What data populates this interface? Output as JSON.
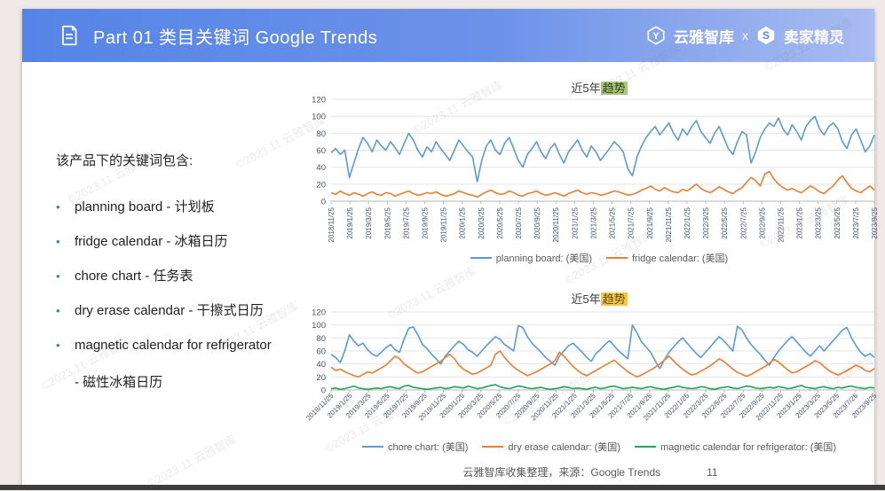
{
  "header": {
    "title": "Part 01 类目关键词 Google Trends",
    "brand_left": "云雅智库",
    "brand_sep": "x",
    "brand_right": "卖家精灵",
    "brand_left_initial": "Y",
    "brand_right_initial": "S"
  },
  "intro": {
    "heading": "该产品下的关键词包含:",
    "items": [
      {
        "text": "planning board  - 计划板"
      },
      {
        "text": "fridge calendar - 冰箱日历"
      },
      {
        "text": "chore chart - 任务表"
      },
      {
        "text": "dry erase calendar - 干擦式日历"
      },
      {
        "text": "magnetic calendar for refrigerator"
      }
    ],
    "continuation": "- 磁性冰箱日历"
  },
  "chart_data": [
    {
      "type": "line",
      "title_prefix": "近5年",
      "title_highlight": "趋势",
      "xlabel": "",
      "ylabel": "",
      "ylim": [
        0,
        120
      ],
      "y_ticks": [
        0,
        20,
        40,
        60,
        80,
        100,
        120
      ],
      "grid": true,
      "legend_position": "bottom",
      "x_label_rotation": -90,
      "x_ticks": [
        "2018/11/25",
        "2019/1/25",
        "2019/3/25",
        "2019/5/25",
        "2019/7/25",
        "2019/9/25",
        "2019/11/25",
        "2020/1/25",
        "2020/3/25",
        "2020/5/25",
        "2020/7/25",
        "2020/9/25",
        "2020/11/25",
        "2021/1/25",
        "2021/3/25",
        "2021/5/25",
        "2021/7/25",
        "2021/9/25",
        "2021/11/25",
        "2022/1/25",
        "2022/3/25",
        "2022/5/25",
        "2022/7/25",
        "2022/9/25",
        "2022/11/25",
        "2023/1/25",
        "2023/3/25",
        "2023/5/25",
        "2023/7/25",
        "2023/9/25"
      ],
      "series": [
        {
          "name": "planning board: (美国)",
          "color": "#5B9BD5",
          "values": [
            57,
            62,
            55,
            60,
            28,
            45,
            62,
            75,
            68,
            58,
            72,
            65,
            60,
            70,
            63,
            55,
            68,
            80,
            72,
            60,
            52,
            64,
            58,
            70,
            62,
            55,
            48,
            60,
            72,
            65,
            58,
            52,
            23,
            48,
            65,
            72,
            60,
            55,
            68,
            75,
            62,
            48,
            40,
            55,
            62,
            70,
            58,
            50,
            62,
            68,
            55,
            45,
            58,
            65,
            72,
            60,
            52,
            65,
            58,
            48,
            55,
            62,
            70,
            65,
            58,
            38,
            30,
            52,
            65,
            75,
            82,
            88,
            78,
            85,
            92,
            80,
            72,
            85,
            78,
            88,
            95,
            82,
            75,
            68,
            80,
            88,
            75,
            62,
            55,
            70,
            82,
            78,
            45,
            58,
            75,
            85,
            92,
            88,
            98,
            85,
            78,
            90,
            82,
            72,
            88,
            95,
            100,
            85,
            78,
            88,
            92,
            85,
            70,
            62,
            78,
            85,
            72,
            58,
            65,
            78
          ]
        },
        {
          "name": "fridge calendar: (美国)",
          "color": "#ED7D31",
          "values": [
            10,
            8,
            12,
            9,
            7,
            10,
            8,
            6,
            9,
            11,
            8,
            7,
            10,
            9,
            6,
            8,
            10,
            12,
            9,
            7,
            8,
            10,
            9,
            11,
            8,
            6,
            7,
            9,
            12,
            10,
            8,
            7,
            5,
            8,
            11,
            13,
            10,
            8,
            9,
            12,
            10,
            7,
            6,
            9,
            10,
            12,
            9,
            7,
            8,
            10,
            8,
            6,
            9,
            11,
            13,
            10,
            8,
            10,
            9,
            7,
            8,
            10,
            12,
            11,
            9,
            7,
            8,
            10,
            13,
            15,
            18,
            14,
            12,
            16,
            13,
            11,
            10,
            14,
            12,
            16,
            20,
            15,
            12,
            10,
            13,
            17,
            14,
            11,
            9,
            13,
            16,
            22,
            28,
            24,
            18,
            32,
            35,
            26,
            20,
            16,
            13,
            15,
            12,
            10,
            14,
            18,
            15,
            11,
            9,
            14,
            18,
            25,
            30,
            22,
            15,
            12,
            10,
            14,
            18,
            13
          ]
        }
      ]
    },
    {
      "type": "line",
      "title_prefix": "近5年",
      "title_highlight": "趋势",
      "xlabel": "",
      "ylabel": "",
      "ylim": [
        0,
        120
      ],
      "y_ticks": [
        0,
        20,
        40,
        60,
        80,
        100,
        120
      ],
      "grid": true,
      "legend_position": "bottom",
      "x_label_rotation": -45,
      "x_ticks": [
        "2018/11/25",
        "2019/1/25",
        "2019/3/25",
        "2019/5/25",
        "2019/7/25",
        "2019/9/25",
        "2019/11/25",
        "2020/1/25",
        "2020/3/25",
        "2020/5/25",
        "2020/7/25",
        "2020/9/25",
        "2020/11/25",
        "2021/1/25",
        "2021/3/25",
        "2021/5/25",
        "2021/7/25",
        "2021/9/25",
        "2021/11/25",
        "2022/1/25",
        "2022/3/25",
        "2022/5/25",
        "2022/7/25",
        "2022/9/25",
        "2022/11/25",
        "2023/1/25",
        "2023/3/25",
        "2023/5/25",
        "2023/7/25",
        "2023/9/25"
      ],
      "series": [
        {
          "name": "chore chart: (美国)",
          "color": "#5B9BD5",
          "values": [
            55,
            50,
            42,
            60,
            85,
            75,
            68,
            72,
            62,
            55,
            52,
            58,
            65,
            70,
            62,
            58,
            78,
            95,
            97,
            85,
            70,
            64,
            55,
            48,
            40,
            52,
            60,
            68,
            75,
            70,
            62,
            58,
            52,
            60,
            68,
            75,
            82,
            78,
            70,
            65,
            60,
            99,
            96,
            82,
            72,
            65,
            58,
            50,
            44,
            38,
            52,
            60,
            68,
            72,
            65,
            58,
            50,
            44,
            56,
            62,
            70,
            76,
            68,
            60,
            54,
            48,
            100,
            88,
            74,
            66,
            58,
            45,
            33,
            46,
            58,
            66,
            74,
            80,
            72,
            64,
            56,
            50,
            58,
            66,
            74,
            82,
            76,
            68,
            60,
            98,
            92,
            80,
            70,
            62,
            55,
            46,
            38,
            50,
            60,
            68,
            76,
            82,
            74,
            66,
            58,
            52,
            60,
            68,
            60,
            68,
            76,
            84,
            92,
            96,
            80,
            68,
            58,
            52,
            56,
            50
          ]
        },
        {
          "name": "dry erase calendar: (美国)",
          "color": "#ED7D31",
          "values": [
            35,
            30,
            32,
            28,
            25,
            22,
            20,
            24,
            28,
            26,
            30,
            34,
            38,
            45,
            52,
            48,
            40,
            35,
            30,
            26,
            28,
            32,
            36,
            40,
            44,
            50,
            55,
            48,
            38,
            32,
            28,
            24,
            26,
            30,
            34,
            38,
            55,
            60,
            50,
            42,
            35,
            30,
            26,
            22,
            25,
            28,
            32,
            36,
            40,
            45,
            58,
            52,
            44,
            36,
            30,
            25,
            22,
            26,
            30,
            34,
            38,
            42,
            46,
            40,
            34,
            28,
            24,
            20,
            23,
            27,
            31,
            35,
            40,
            46,
            52,
            45,
            38,
            32,
            27,
            23,
            25,
            29,
            33,
            37,
            42,
            48,
            44,
            38,
            32,
            27,
            24,
            21,
            24,
            28,
            32,
            36,
            41,
            47,
            43,
            37,
            31,
            26,
            28,
            32,
            36,
            40,
            45,
            42,
            36,
            30,
            26,
            23,
            26,
            30,
            34,
            38,
            35,
            30,
            28,
            33
          ]
        },
        {
          "name": "magnetic calendar for refrigerator: (美国)",
          "color": "#21A453",
          "values": [
            2,
            3,
            1,
            2,
            4,
            6,
            3,
            2,
            1,
            2,
            3,
            2,
            4,
            5,
            3,
            2,
            6,
            7,
            4,
            3,
            2,
            1,
            2,
            3,
            4,
            2,
            3,
            5,
            4,
            3,
            6,
            4,
            2,
            3,
            5,
            7,
            8,
            5,
            3,
            2,
            4,
            6,
            5,
            3,
            2,
            3,
            4,
            2,
            1,
            2,
            3,
            5,
            4,
            2,
            3,
            2,
            1,
            3,
            4,
            2,
            3,
            5,
            6,
            4,
            2,
            3,
            4,
            3,
            2,
            4,
            5,
            3,
            2,
            1,
            3,
            4,
            6,
            4,
            3,
            2,
            3,
            5,
            4,
            2,
            1,
            3,
            4,
            5,
            3,
            2,
            4,
            6,
            5,
            3,
            2,
            3,
            4,
            3,
            5,
            4,
            2,
            3,
            5,
            7,
            4,
            3,
            2,
            4,
            5,
            3,
            2,
            4,
            3,
            5,
            6,
            4,
            3,
            2,
            4,
            3
          ]
        }
      ]
    }
  ],
  "footer": {
    "source": "云雅智库收集整理，来源：Google Trends",
    "page": "11"
  },
  "watermark": {
    "text": "©2023.11 云雅智库"
  }
}
